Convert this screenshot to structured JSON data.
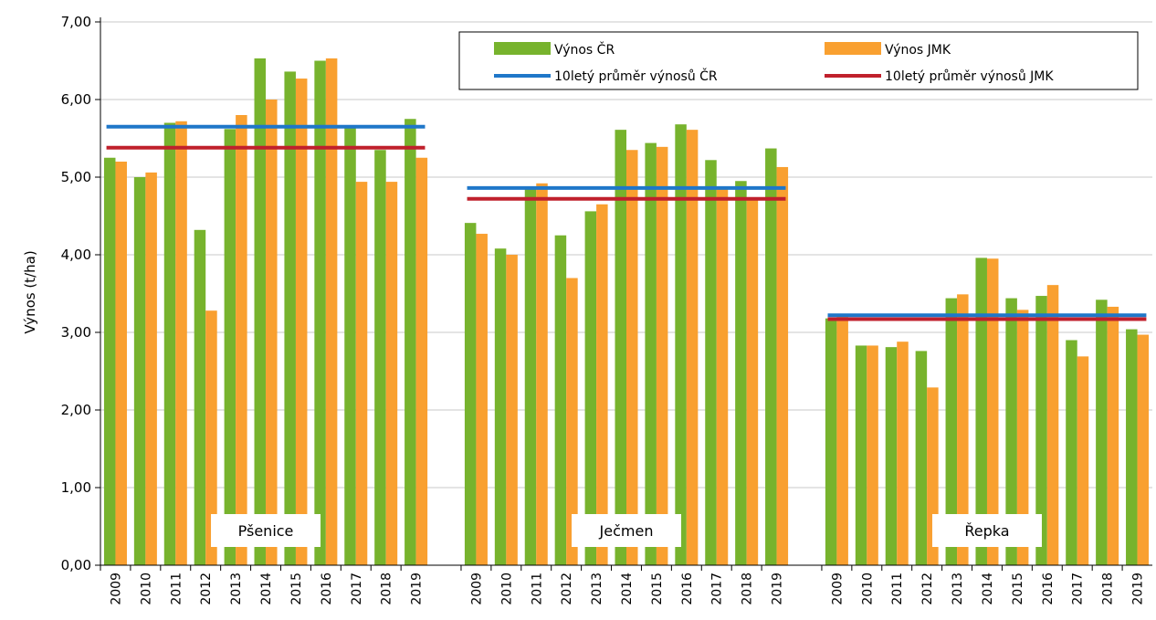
{
  "chart_data": {
    "type": "bar",
    "ylabel": "Výnos (t/ha)",
    "ylim": [
      0,
      7
    ],
    "yticks": [
      "0,00",
      "1,00",
      "2,00",
      "3,00",
      "4,00",
      "5,00",
      "6,00",
      "7,00"
    ],
    "grid": "horizontal",
    "legend": {
      "placement": "top-right",
      "entries": [
        {
          "label": "Výnos ČR",
          "kind": "bar",
          "color": "#77b32d"
        },
        {
          "label": "Výnos JMK",
          "kind": "bar",
          "color": "#f9a030"
        },
        {
          "label": "10letý průměr výnosů ČR",
          "kind": "line",
          "color": "#1f77c9"
        },
        {
          "label": "10letý průměr výnosů JMK",
          "kind": "line",
          "color": "#c0202c"
        }
      ]
    },
    "groups": [
      {
        "name": "Pšenice",
        "categories": [
          "2009",
          "2010",
          "2011",
          "2012",
          "2013",
          "2014",
          "2015",
          "2016",
          "2017",
          "2018",
          "2019"
        ],
        "series": [
          {
            "name": "Výnos ČR",
            "values": [
              5.25,
              5.0,
              5.7,
              4.32,
              5.62,
              6.53,
              6.36,
              6.5,
              5.63,
              5.35,
              5.75
            ]
          },
          {
            "name": "Výnos JMK",
            "values": [
              5.2,
              5.06,
              5.72,
              3.28,
              5.8,
              6.0,
              6.27,
              6.53,
              4.94,
              4.94,
              5.25
            ]
          }
        ],
        "avg_cr": 5.65,
        "avg_jmk": 5.38
      },
      {
        "name": "Ječmen",
        "categories": [
          "2009",
          "2010",
          "2011",
          "2012",
          "2013",
          "2014",
          "2015",
          "2016",
          "2017",
          "2018",
          "2019"
        ],
        "series": [
          {
            "name": "Výnos ČR",
            "values": [
              4.41,
              4.08,
              4.85,
              4.25,
              4.56,
              5.61,
              5.44,
              5.68,
              5.22,
              4.95,
              5.37
            ]
          },
          {
            "name": "Výnos JMK",
            "values": [
              4.27,
              4.0,
              4.92,
              3.7,
              4.65,
              5.35,
              5.39,
              5.61,
              4.88,
              4.72,
              5.13
            ]
          }
        ],
        "avg_cr": 4.86,
        "avg_jmk": 4.72
      },
      {
        "name": "Řepka",
        "categories": [
          "2009",
          "2010",
          "2011",
          "2012",
          "2013",
          "2014",
          "2015",
          "2016",
          "2017",
          "2018",
          "2019"
        ],
        "series": [
          {
            "name": "Výnos ČR",
            "values": [
              3.18,
              2.83,
              2.81,
              2.76,
              3.44,
              3.96,
              3.44,
              3.47,
              2.9,
              3.42,
              3.04
            ]
          },
          {
            "name": "Výnos JMK",
            "values": [
              3.2,
              2.83,
              2.88,
              2.29,
              3.49,
              3.95,
              3.29,
              3.61,
              2.69,
              3.33,
              2.97
            ]
          }
        ],
        "avg_cr": 3.22,
        "avg_jmk": 3.17
      }
    ]
  }
}
